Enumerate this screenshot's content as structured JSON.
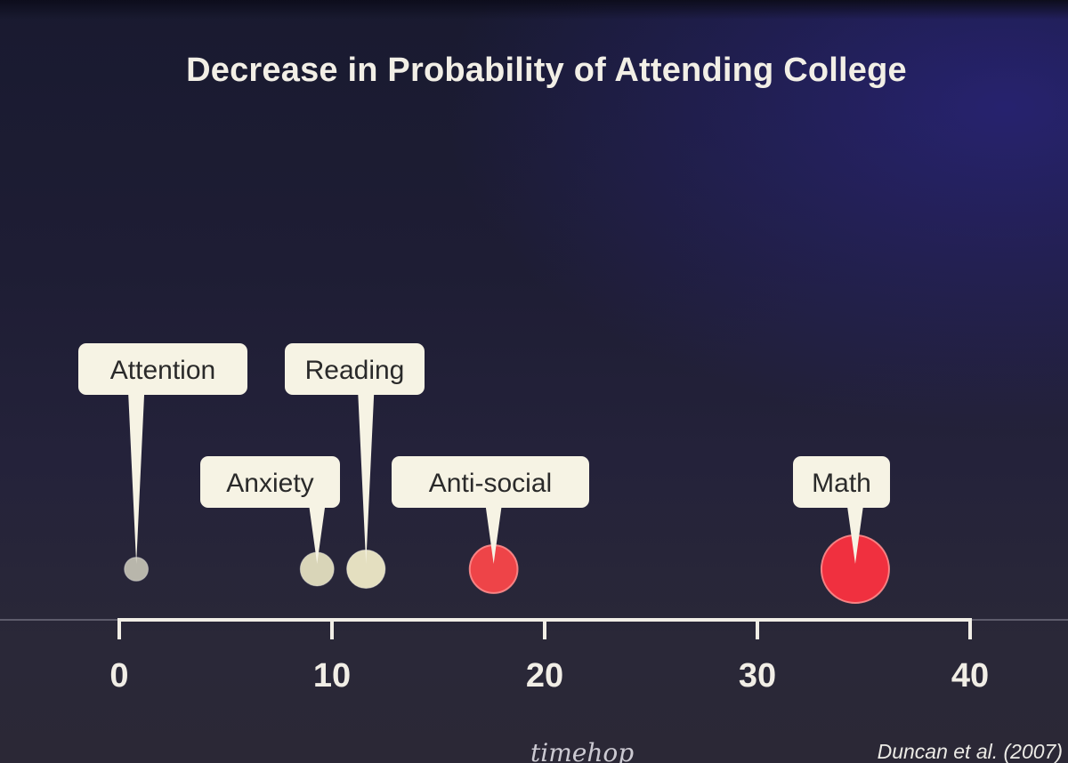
{
  "chart_data": {
    "type": "scatter",
    "title": "Decrease in Probability of Attending College",
    "xlim": [
      0,
      40
    ],
    "xticks": [
      "0",
      "10",
      "20",
      "30",
      "40"
    ],
    "points": [
      {
        "label": "Attention",
        "x": 0.8,
        "size": 0.5,
        "color": "#b8b6ab",
        "callout_row": "upper"
      },
      {
        "label": "Anxiety",
        "x": 9.3,
        "size": 1.0,
        "color": "#d9d5b8",
        "callout_row": "lower"
      },
      {
        "label": "Reading",
        "x": 11.6,
        "size": 1.3,
        "color": "#e4dfc0",
        "callout_row": "upper"
      },
      {
        "label": "Anti-social",
        "x": 17.6,
        "size": 2.0,
        "color": "#ee4448",
        "callout_row": "lower"
      },
      {
        "label": "Math",
        "x": 34.6,
        "size": 4.0,
        "color": "#f0303f",
        "callout_row": "lower"
      }
    ],
    "grid": false,
    "legend": "none"
  },
  "colors": {
    "text": "#f1eee6",
    "callout_fill": "#f6f3e4",
    "callout_text": "#2a2a2a",
    "axis": "#f1eee6",
    "highlight": "#f0303f"
  },
  "source": "Duncan et al. (2007)",
  "watermark": "timehop"
}
